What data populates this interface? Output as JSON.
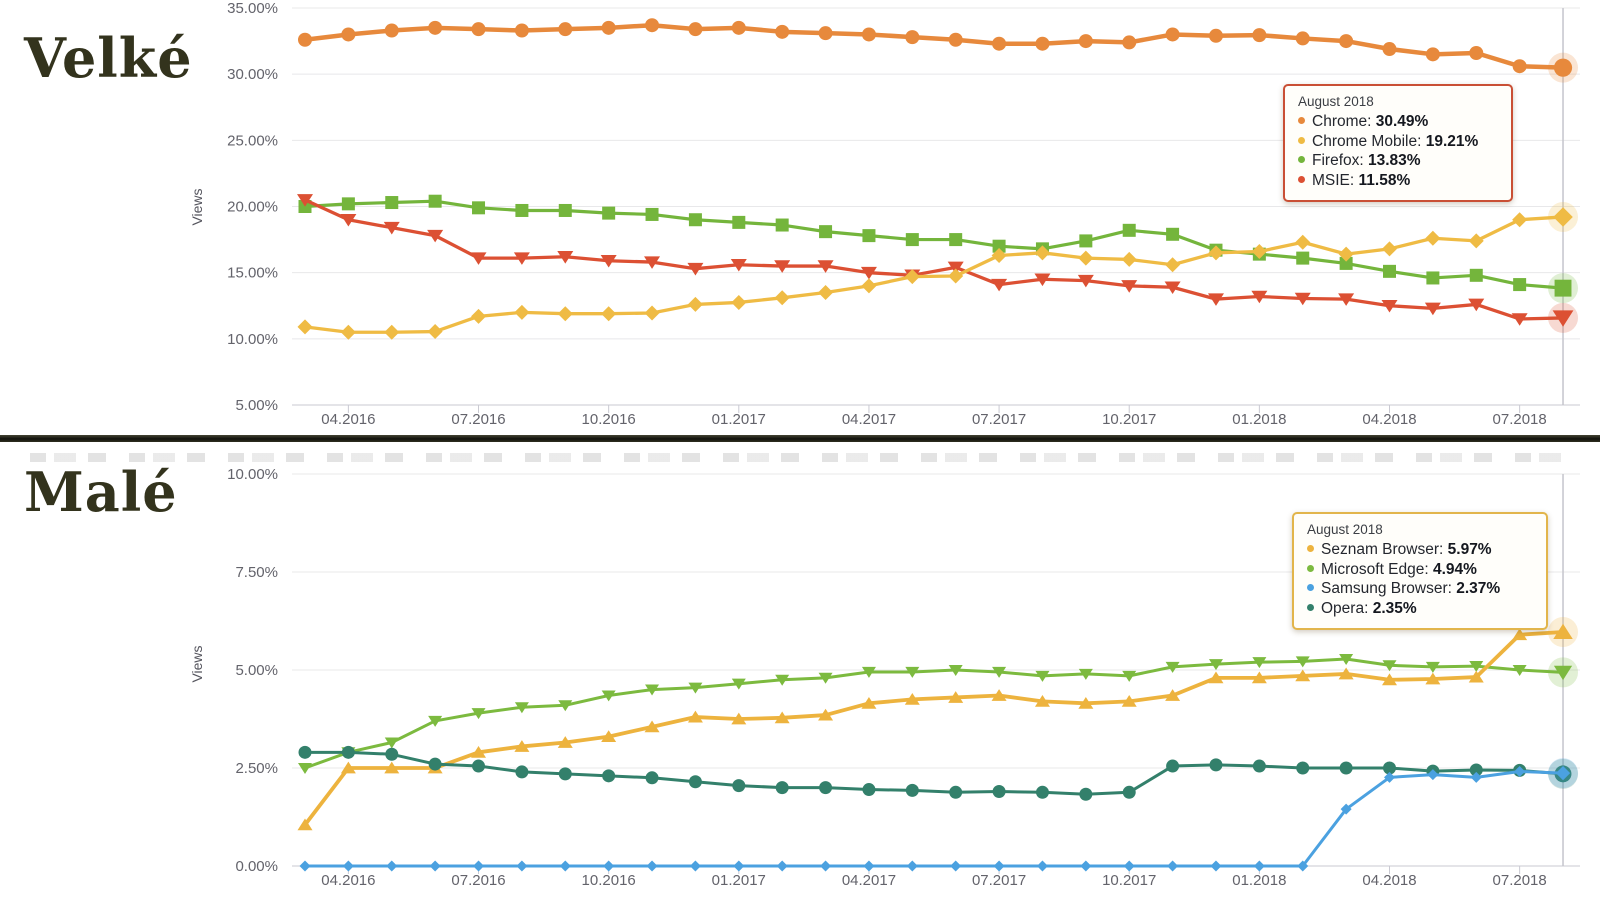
{
  "chart_data": [
    {
      "type": "line",
      "title": "Velké",
      "ylabel": "Views",
      "ylim": [
        5,
        35
      ],
      "grid": true,
      "yticks": [
        {
          "value": 35,
          "label": "35.00%"
        },
        {
          "value": 30,
          "label": "30.00%"
        },
        {
          "value": 25,
          "label": "25.00%"
        },
        {
          "value": 20,
          "label": "20.00%"
        },
        {
          "value": 15,
          "label": "15.00%"
        },
        {
          "value": 10,
          "label": "10.00%"
        },
        {
          "value": 5,
          "label": "5.00%"
        }
      ],
      "x": [
        "03.2016",
        "04.2016",
        "05.2016",
        "06.2016",
        "07.2016",
        "08.2016",
        "09.2016",
        "10.2016",
        "11.2016",
        "12.2016",
        "01.2017",
        "02.2017",
        "03.2017",
        "04.2017",
        "05.2017",
        "06.2017",
        "07.2017",
        "08.2017",
        "09.2017",
        "10.2017",
        "11.2017",
        "12.2017",
        "01.2018",
        "02.2018",
        "03.2018",
        "04.2018",
        "05.2018",
        "06.2018",
        "07.2018",
        "08.2018"
      ],
      "xticks": [
        {
          "index": 1,
          "label": "04.2016"
        },
        {
          "index": 4,
          "label": "07.2016"
        },
        {
          "index": 7,
          "label": "10.2016"
        },
        {
          "index": 10,
          "label": "01.2017"
        },
        {
          "index": 13,
          "label": "04.2017"
        },
        {
          "index": 16,
          "label": "07.2017"
        },
        {
          "index": 19,
          "label": "10.2017"
        },
        {
          "index": 22,
          "label": "01.2018"
        },
        {
          "index": 25,
          "label": "04.2018"
        },
        {
          "index": 28,
          "label": "07.2018"
        }
      ],
      "series": [
        {
          "name": "Chrome",
          "color": "#E7893C",
          "marker": "circle",
          "values": [
            32.6,
            33.0,
            33.3,
            33.5,
            33.4,
            33.3,
            33.4,
            33.5,
            33.7,
            33.4,
            33.5,
            33.2,
            33.1,
            33.0,
            32.8,
            32.6,
            32.3,
            32.3,
            32.5,
            32.4,
            33.0,
            32.9,
            32.95,
            32.7,
            32.5,
            31.9,
            31.5,
            31.6,
            30.6,
            30.49
          ]
        },
        {
          "name": "Firefox",
          "color": "#74B53C",
          "marker": "square",
          "values": [
            20.0,
            20.2,
            20.3,
            20.4,
            19.9,
            19.7,
            19.7,
            19.5,
            19.4,
            19.0,
            18.8,
            18.6,
            18.1,
            17.8,
            17.5,
            17.5,
            17.0,
            16.8,
            17.4,
            18.2,
            17.9,
            16.7,
            16.4,
            16.1,
            15.7,
            15.1,
            14.6,
            14.8,
            14.1,
            13.83
          ]
        },
        {
          "name": "MSIE",
          "color": "#DC5033",
          "marker": "triangle-down",
          "values": [
            20.5,
            19.0,
            18.4,
            17.8,
            16.1,
            16.1,
            16.2,
            15.9,
            15.8,
            15.3,
            15.6,
            15.5,
            15.5,
            15.0,
            14.8,
            15.4,
            14.1,
            14.5,
            14.4,
            14.0,
            13.9,
            13.0,
            13.2,
            13.05,
            13.0,
            12.5,
            12.3,
            12.6,
            11.5,
            11.58
          ]
        },
        {
          "name": "Chrome Mobile",
          "color": "#EFBB44",
          "marker": "diamond",
          "values": [
            10.9,
            10.5,
            10.5,
            10.55,
            11.7,
            12.0,
            11.9,
            11.9,
            11.95,
            12.6,
            12.75,
            13.1,
            13.5,
            14.0,
            14.7,
            14.75,
            16.3,
            16.5,
            16.1,
            16.0,
            15.6,
            16.5,
            16.6,
            17.3,
            16.4,
            16.8,
            17.6,
            17.4,
            19.0,
            19.21
          ]
        }
      ],
      "crosshair_index": 29,
      "tooltip": {
        "title": "August 2018",
        "rows": [
          {
            "label": "Chrome",
            "value": "30.49%",
            "color": "#E7893C"
          },
          {
            "label": "Chrome Mobile",
            "value": "19.21%",
            "color": "#EFBB44"
          },
          {
            "label": "Firefox",
            "value": "13.83%",
            "color": "#74B53C"
          },
          {
            "label": "MSIE",
            "value": "11.58%",
            "color": "#DC5033"
          }
        ]
      }
    },
    {
      "type": "line",
      "title": "Malé",
      "ylabel": "Views",
      "ylim": [
        0,
        10
      ],
      "grid": true,
      "yticks": [
        {
          "value": 10,
          "label": "10.00%"
        },
        {
          "value": 7.5,
          "label": "7.50%"
        },
        {
          "value": 5,
          "label": "5.00%"
        },
        {
          "value": 2.5,
          "label": "2.50%"
        },
        {
          "value": 0,
          "label": "0.00%"
        }
      ],
      "x": [
        "03.2016",
        "04.2016",
        "05.2016",
        "06.2016",
        "07.2016",
        "08.2016",
        "09.2016",
        "10.2016",
        "11.2016",
        "12.2016",
        "01.2017",
        "02.2017",
        "03.2017",
        "04.2017",
        "05.2017",
        "06.2017",
        "07.2017",
        "08.2017",
        "09.2017",
        "10.2017",
        "11.2017",
        "12.2017",
        "01.2018",
        "02.2018",
        "03.2018",
        "04.2018",
        "05.2018",
        "06.2018",
        "07.2018",
        "08.2018"
      ],
      "xticks": [
        {
          "index": 1,
          "label": "04.2016"
        },
        {
          "index": 4,
          "label": "07.2016"
        },
        {
          "index": 7,
          "label": "10.2016"
        },
        {
          "index": 10,
          "label": "01.2017"
        },
        {
          "index": 13,
          "label": "04.2017"
        },
        {
          "index": 16,
          "label": "07.2017"
        },
        {
          "index": 19,
          "label": "10.2017"
        },
        {
          "index": 22,
          "label": "01.2018"
        },
        {
          "index": 25,
          "label": "04.2018"
        },
        {
          "index": 28,
          "label": "07.2018"
        }
      ],
      "series": [
        {
          "name": "Microsoft Edge",
          "color": "#7CBA3F",
          "marker": "triangle-down",
          "values": [
            2.5,
            2.9,
            3.15,
            3.7,
            3.9,
            4.05,
            4.1,
            4.35,
            4.5,
            4.55,
            4.65,
            4.75,
            4.8,
            4.95,
            4.95,
            5.0,
            4.95,
            4.85,
            4.9,
            4.85,
            5.08,
            5.15,
            5.2,
            5.22,
            5.28,
            5.12,
            5.08,
            5.1,
            5.0,
            4.94
          ]
        },
        {
          "name": "Seznam Browser",
          "color": "#EDB33E",
          "marker": "triangle-up",
          "values": [
            1.05,
            2.5,
            2.5,
            2.5,
            2.9,
            3.05,
            3.15,
            3.3,
            3.55,
            3.8,
            3.75,
            3.78,
            3.85,
            4.15,
            4.25,
            4.3,
            4.35,
            4.2,
            4.15,
            4.2,
            4.35,
            4.8,
            4.8,
            4.85,
            4.9,
            4.75,
            4.77,
            4.82,
            5.9,
            5.97
          ]
        },
        {
          "name": "Opera",
          "color": "#33806B",
          "marker": "circle",
          "values": [
            2.9,
            2.9,
            2.85,
            2.6,
            2.55,
            2.4,
            2.35,
            2.3,
            2.25,
            2.15,
            2.05,
            2.0,
            2.0,
            1.95,
            1.93,
            1.88,
            1.9,
            1.88,
            1.83,
            1.88,
            2.55,
            2.58,
            2.55,
            2.5,
            2.5,
            2.5,
            2.42,
            2.45,
            2.44,
            2.35
          ]
        },
        {
          "name": "Samsung Browser",
          "color": "#4BA1E0",
          "marker": "diamond",
          "values": [
            0,
            0,
            0,
            0,
            0,
            0,
            0,
            0,
            0,
            0,
            0,
            0,
            0,
            0,
            0,
            0,
            0,
            0,
            0,
            0,
            0,
            0,
            0,
            0,
            1.45,
            2.26,
            2.33,
            2.26,
            2.41,
            2.37
          ]
        }
      ],
      "crosshair_index": 29,
      "tooltip": {
        "title": "August 2018",
        "rows": [
          {
            "label": "Seznam Browser",
            "value": "5.97%",
            "color": "#EDB33E"
          },
          {
            "label": "Microsoft Edge",
            "value": "4.94%",
            "color": "#7CBA3F"
          },
          {
            "label": "Samsung Browser",
            "value": "2.37%",
            "color": "#4BA1E0"
          },
          {
            "label": "Opera",
            "value": "2.35%",
            "color": "#33806B"
          }
        ]
      }
    }
  ]
}
